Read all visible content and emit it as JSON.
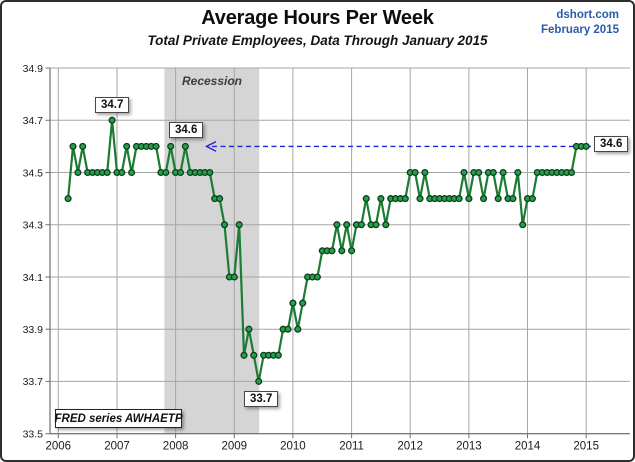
{
  "masthead": {
    "source": "dshort.com",
    "date": "February 2015"
  },
  "chart_data": {
    "type": "line",
    "title": "Average Hours Per Week",
    "subtitle": "Total Private Employees, Data Through January 2015",
    "start_month": "2006-03",
    "end_month": "2015-01",
    "values": [
      34.4,
      34.6,
      34.5,
      34.6,
      34.5,
      34.5,
      34.5,
      34.5,
      34.5,
      34.7,
      34.5,
      34.5,
      34.6,
      34.5,
      34.6,
      34.6,
      34.6,
      34.6,
      34.6,
      34.5,
      34.5,
      34.6,
      34.5,
      34.5,
      34.6,
      34.5,
      34.5,
      34.5,
      34.5,
      34.5,
      34.4,
      34.4,
      34.3,
      34.1,
      34.1,
      34.3,
      33.8,
      33.9,
      33.8,
      33.7,
      33.8,
      33.8,
      33.8,
      33.8,
      33.9,
      33.9,
      34.0,
      33.9,
      34.0,
      34.1,
      34.1,
      34.1,
      34.2,
      34.2,
      34.2,
      34.3,
      34.2,
      34.3,
      34.2,
      34.3,
      34.3,
      34.4,
      34.3,
      34.3,
      34.4,
      34.3,
      34.4,
      34.4,
      34.4,
      34.4,
      34.5,
      34.5,
      34.4,
      34.5,
      34.4,
      34.4,
      34.4,
      34.4,
      34.4,
      34.4,
      34.4,
      34.5,
      34.4,
      34.5,
      34.5,
      34.4,
      34.5,
      34.5,
      34.4,
      34.5,
      34.4,
      34.4,
      34.5,
      34.3,
      34.4,
      34.4,
      34.5,
      34.5,
      34.5,
      34.5,
      34.5,
      34.5,
      34.5,
      34.5,
      34.6,
      34.6,
      34.6
    ],
    "ylim": [
      33.5,
      34.9
    ],
    "ytick_labels": [
      "34.9",
      "34.7",
      "34.5",
      "34.3",
      "34.1",
      "33.9",
      "33.7",
      "33.5"
    ],
    "xtick_labels": [
      "2006",
      "2007",
      "2008",
      "2009",
      "2010",
      "2011",
      "2012",
      "2013",
      "2014",
      "2015"
    ],
    "grid": true,
    "legend_position": "none",
    "recession_band": {
      "label": "Recession",
      "start_month_index": 21.7,
      "end_month_index": 41.1
    },
    "annotations": [
      {
        "id": "peak",
        "text": "34.7"
      },
      {
        "id": "pre-recession-high",
        "text": "34.6"
      },
      {
        "id": "trough",
        "text": "33.7"
      },
      {
        "id": "latest",
        "text": "34.6"
      }
    ],
    "footnote": "FRED series AWHAETP",
    "colors": {
      "line": "#1c7c33",
      "marker": "#24a04a",
      "marker_edge": "#0e3d1d",
      "arrow": "#2323d6",
      "band": "#d5d5d5",
      "grid": "#a6a6a6",
      "axis": "#6e6e6e",
      "source_text": "#2a5caa"
    }
  }
}
